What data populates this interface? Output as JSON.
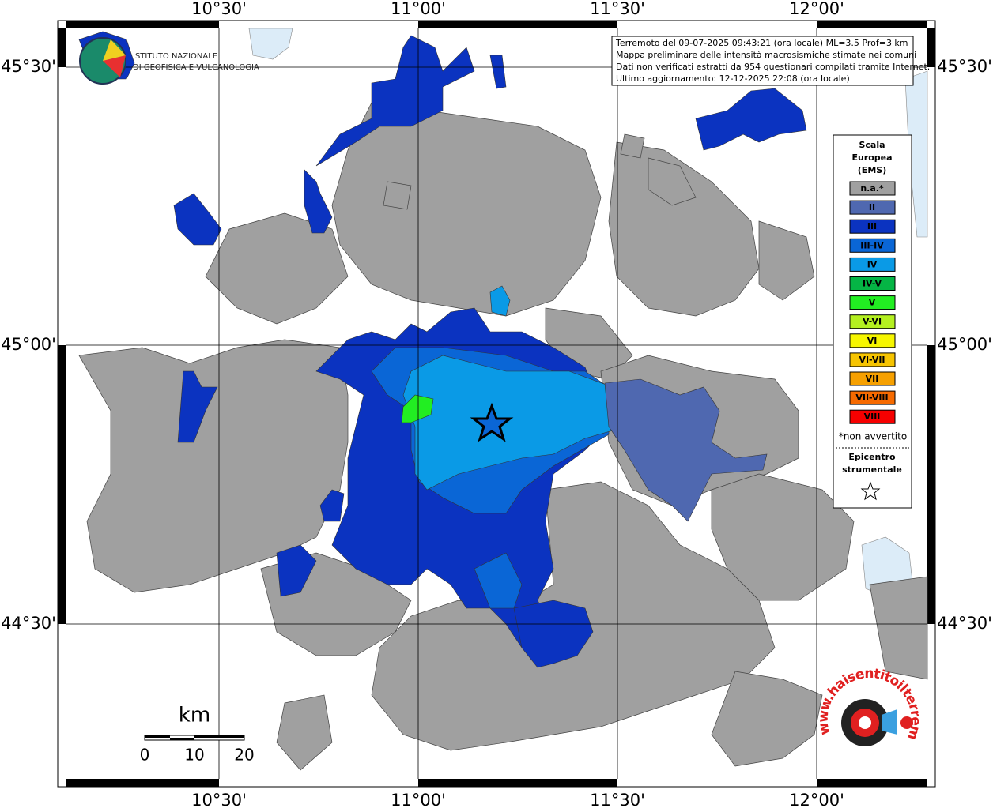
{
  "map": {
    "top_labels": [
      "10°30'",
      "11°00'",
      "11°30'",
      "12°00'"
    ],
    "bottom_labels": [
      "10°30'",
      "11°00'",
      "11°30'",
      "12°00'"
    ],
    "left_labels": [
      "45°30'",
      "45°00'",
      "44°30'"
    ],
    "right_labels": [
      "45°30'",
      "45°00'",
      "44°30'"
    ]
  },
  "info_box": {
    "lines": [
      "Terremoto del 09-07-2025 09:43:21 (ora locale) ML=3.5 Prof=3 km",
      "Mappa preliminare delle intensità macrosismiche stimate nei comuni",
      "Dati non verificati estratti da 954 questionari compilati tramite Internet.",
      "Ultimo aggiornamento: 12-12-2025 22:08 (ora locale)"
    ]
  },
  "legend": {
    "title_lines": [
      "Scala",
      "Europea",
      "(EMS)"
    ],
    "items": [
      {
        "label": "n.a.*",
        "color": "#a0a0a0"
      },
      {
        "label": "II",
        "color": "#4f68b0"
      },
      {
        "label": "III",
        "color": "#0b33c0"
      },
      {
        "label": "III-IV",
        "color": "#0a66d6"
      },
      {
        "label": "IV",
        "color": "#0a9ae6"
      },
      {
        "label": "IV-V",
        "color": "#05b545"
      },
      {
        "label": "V",
        "color": "#22ee22"
      },
      {
        "label": "V-VI",
        "color": "#b4f020"
      },
      {
        "label": "VI",
        "color": "#f6f600"
      },
      {
        "label": "VI-VII",
        "color": "#f6c400"
      },
      {
        "label": "VII",
        "color": "#f6a000"
      },
      {
        "label": "VII-VIII",
        "color": "#f66a00"
      },
      {
        "label": "VIII",
        "color": "#f60000"
      }
    ],
    "note": "*non avvertito",
    "epicenter_lines": [
      "Epicentro",
      "strumentale"
    ]
  },
  "scale_bar": {
    "unit": "km",
    "labels": [
      "0",
      "10",
      "20"
    ]
  },
  "logos": {
    "ingv_lines": [
      "ISTITUTO NAZIONALE",
      "DI GEOFISICA E VULCANOLOGIA"
    ],
    "hst": "www.haisentitoilterremoto.it"
  }
}
